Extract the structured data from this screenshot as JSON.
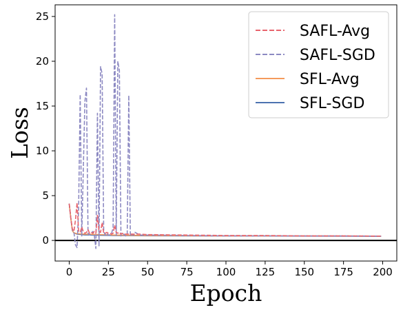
{
  "chart_data": {
    "type": "line",
    "title": "",
    "xlabel": "Epoch",
    "ylabel": "Loss",
    "xlim": [
      -9,
      209
    ],
    "ylim": [
      -2.3,
      26.3
    ],
    "xticks": [
      0,
      25,
      50,
      75,
      100,
      125,
      150,
      175,
      200
    ],
    "yticks": [
      0,
      5,
      10,
      15,
      20,
      25
    ],
    "hline": 0,
    "legend_position": "top-right",
    "grid": false,
    "series": [
      {
        "name": "SAFL-Avg",
        "color": "#e8636c",
        "style": "dashed",
        "points": [
          [
            0,
            4.1
          ],
          [
            1,
            2.5
          ],
          [
            2,
            1.3
          ],
          [
            3,
            1.0
          ],
          [
            4,
            2.3
          ],
          [
            5,
            4.2
          ],
          [
            6,
            1.0
          ],
          [
            7,
            0.9
          ],
          [
            8,
            1.5
          ],
          [
            9,
            1.0
          ],
          [
            10,
            0.8
          ],
          [
            11,
            0.9
          ],
          [
            12,
            1.2
          ],
          [
            13,
            0.8
          ],
          [
            14,
            0.9
          ],
          [
            15,
            0.8
          ],
          [
            16,
            1.0
          ],
          [
            17,
            0.8
          ],
          [
            18,
            2.8
          ],
          [
            19,
            1.0
          ],
          [
            20,
            0.9
          ],
          [
            21,
            2.0
          ],
          [
            22,
            0.8
          ],
          [
            23,
            0.8
          ],
          [
            24,
            0.9
          ],
          [
            25,
            0.8
          ],
          [
            26,
            0.8
          ],
          [
            27,
            0.7
          ],
          [
            28,
            0.8
          ],
          [
            29,
            1.7
          ],
          [
            30,
            0.9
          ],
          [
            31,
            0.8
          ],
          [
            32,
            0.9
          ],
          [
            33,
            0.7
          ],
          [
            34,
            0.8
          ],
          [
            35,
            0.7
          ],
          [
            40,
            0.7
          ],
          [
            45,
            0.7
          ],
          [
            50,
            0.65
          ],
          [
            75,
            0.6
          ],
          [
            100,
            0.55
          ],
          [
            125,
            0.55
          ],
          [
            150,
            0.5
          ],
          [
            175,
            0.5
          ],
          [
            199,
            0.48
          ]
        ]
      },
      {
        "name": "SAFL-SGD",
        "color": "#8c89c2",
        "style": "dashed",
        "points": [
          [
            0,
            4.1
          ],
          [
            1,
            2.5
          ],
          [
            2,
            1.2
          ],
          [
            3,
            0.9
          ],
          [
            4,
            -0.5
          ],
          [
            5,
            -0.8
          ],
          [
            6,
            3.5
          ],
          [
            7,
            16.3
          ],
          [
            8,
            0.5
          ],
          [
            9,
            8.0
          ],
          [
            10,
            15.5
          ],
          [
            11,
            17.0
          ],
          [
            12,
            0.8
          ],
          [
            13,
            0.6
          ],
          [
            14,
            0.8
          ],
          [
            15,
            1.0
          ],
          [
            16,
            0.6
          ],
          [
            17,
            -0.9
          ],
          [
            18,
            14.2
          ],
          [
            19,
            -0.6
          ],
          [
            20,
            19.4
          ],
          [
            21,
            18.6
          ],
          [
            22,
            1.0
          ],
          [
            23,
            0.6
          ],
          [
            24,
            0.8
          ],
          [
            25,
            0.6
          ],
          [
            26,
            0.6
          ],
          [
            27,
            0.8
          ],
          [
            28,
            1.4
          ],
          [
            29,
            25.2
          ],
          [
            30,
            0.6
          ],
          [
            31,
            20.0
          ],
          [
            32,
            19.0
          ],
          [
            33,
            0.5
          ],
          [
            34,
            0.6
          ],
          [
            35,
            0.7
          ],
          [
            36,
            0.5
          ],
          [
            37,
            0.6
          ],
          [
            38,
            16.2
          ],
          [
            39,
            0.5
          ],
          [
            40,
            0.7
          ],
          [
            41,
            0.6
          ],
          [
            42,
            0.9
          ],
          [
            45,
            0.6
          ],
          [
            50,
            0.6
          ],
          [
            75,
            0.55
          ],
          [
            100,
            0.5
          ],
          [
            125,
            0.5
          ],
          [
            150,
            0.5
          ],
          [
            175,
            0.5
          ],
          [
            199,
            0.48
          ]
        ]
      },
      {
        "name": "SFL-Avg",
        "color": "#f59a5c",
        "style": "solid",
        "points": [
          [
            0,
            4.1
          ],
          [
            1,
            2.5
          ],
          [
            2,
            1.1
          ],
          [
            3,
            0.85
          ],
          [
            5,
            0.75
          ],
          [
            10,
            0.7
          ],
          [
            20,
            0.65
          ],
          [
            30,
            0.6
          ],
          [
            50,
            0.55
          ],
          [
            100,
            0.5
          ],
          [
            150,
            0.5
          ],
          [
            199,
            0.48
          ]
        ]
      },
      {
        "name": "SFL-SGD",
        "color": "#4c72b0",
        "style": "solid",
        "points": [
          [
            0,
            4.1
          ],
          [
            1,
            2.5
          ],
          [
            2,
            1.1
          ],
          [
            3,
            0.85
          ],
          [
            5,
            0.7
          ],
          [
            10,
            0.62
          ],
          [
            20,
            0.58
          ],
          [
            30,
            0.55
          ],
          [
            50,
            0.52
          ],
          [
            100,
            0.5
          ],
          [
            150,
            0.48
          ],
          [
            199,
            0.46
          ]
        ]
      }
    ]
  }
}
